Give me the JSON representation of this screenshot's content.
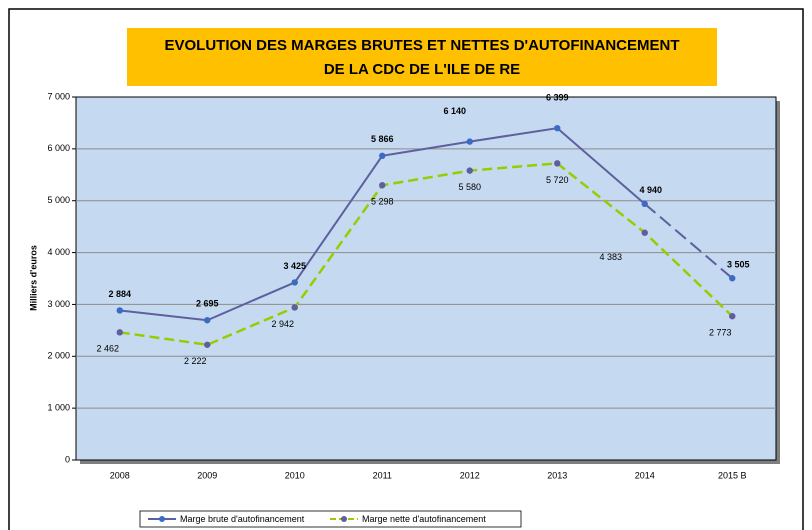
{
  "chart_data": {
    "type": "line",
    "title": "EVOLUTION DES MARGES BRUTES ET NETTES D'AUTOFINANCEMENT",
    "subtitle": "DE LA CDC DE L'ILE DE RE",
    "y_label": "Milliers d'euros",
    "categories": [
      "2008",
      "2009",
      "2010",
      "2011",
      "2012",
      "2013",
      "2014",
      "2015 B"
    ],
    "series": [
      {
        "name": "Marge brute d'autofinancement",
        "color": "#5d5f9e",
        "marker_color": "#3a6cc4",
        "dash": false,
        "dash_last": true,
        "values": [
          2884,
          2695,
          3425,
          5866,
          6140,
          6399,
          4940,
          3505
        ],
        "value_labels": [
          "2 884",
          "2 695",
          "3 425",
          "5 866",
          "6 140",
          "6 399",
          "4 940",
          "3 505"
        ]
      },
      {
        "name": "Marge nette d'autofinancement",
        "color": "#99cc00",
        "marker_color": "#5d5f9e",
        "dash": true,
        "dash_last": false,
        "values": [
          2462,
          2222,
          2942,
          5298,
          5580,
          5720,
          4383,
          2773
        ],
        "value_labels": [
          "2 462",
          "2 222",
          "2 942",
          "5 298",
          "5 580",
          "5 720",
          "4 383",
          "2 773"
        ]
      }
    ],
    "ylim": [
      0,
      7000
    ],
    "yticks": [
      0,
      {
        "value": 1000,
        "label": "1 000"
      },
      {
        "value": 2000,
        "label": "2 000"
      },
      {
        "value": 3000,
        "label": "3 000"
      },
      {
        "value": 4000,
        "label": "4 000"
      },
      {
        "value": 5000,
        "label": "5 000"
      },
      {
        "value": 6000,
        "label": "6 000"
      },
      {
        "value": 7000,
        "label": "7 000"
      }
    ],
    "grid": true,
    "legend": "bottom"
  }
}
